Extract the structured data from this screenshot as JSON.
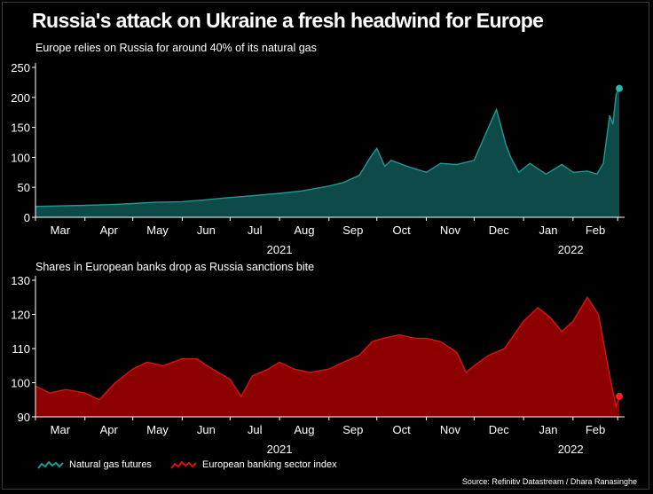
{
  "title": "Russia's attack on Ukraine a fresh headwind for Europe",
  "source": "Source: Refinitiv Datastream / Dhara Ranasinghe",
  "legend": {
    "gas": "Natural gas futures",
    "banks": "European banking sector index"
  },
  "colors": {
    "background": "#000000",
    "gas_fill": "#0e4a48",
    "gas_line": "#1a9b95",
    "bank_fill": "#8c0000",
    "bank_line": "#e0100f",
    "gas_dot": "#2bb5ae",
    "bank_dot": "#ff2020"
  },
  "chart_data": [
    {
      "type": "area",
      "subtitle": "Europe relies on Russia for around 40% of its natural gas",
      "series": [
        {
          "name": "Natural gas futures",
          "x": [
            "2021-03-01",
            "2021-03-15",
            "2021-04-01",
            "2021-04-15",
            "2021-05-01",
            "2021-05-15",
            "2021-06-01",
            "2021-06-15",
            "2021-07-01",
            "2021-07-15",
            "2021-08-01",
            "2021-08-15",
            "2021-09-01",
            "2021-09-10",
            "2021-09-20",
            "2021-09-27",
            "2021-10-01",
            "2021-10-06",
            "2021-10-10",
            "2021-10-20",
            "2021-11-01",
            "2021-11-10",
            "2021-11-20",
            "2021-12-01",
            "2021-12-10",
            "2021-12-15",
            "2021-12-21",
            "2021-12-24",
            "2021-12-29",
            "2022-01-05",
            "2022-01-15",
            "2022-01-25",
            "2022-02-01",
            "2022-02-10",
            "2022-02-16",
            "2022-02-20",
            "2022-02-24",
            "2022-02-26",
            "2022-02-28",
            "2022-03-02"
          ],
          "values": [
            18,
            19,
            20,
            21,
            23,
            25,
            26,
            29,
            33,
            36,
            40,
            44,
            52,
            58,
            70,
            100,
            115,
            85,
            95,
            85,
            75,
            90,
            88,
            95,
            150,
            180,
            120,
            100,
            75,
            90,
            72,
            88,
            75,
            77,
            72,
            90,
            170,
            155,
            205,
            215
          ]
        }
      ],
      "ylim": [
        0,
        250
      ],
      "yticks": [
        "0",
        "50",
        "100",
        "150",
        "200",
        "250"
      ],
      "xticks": [
        "Mar",
        "Apr",
        "May",
        "Jun",
        "Jul",
        "Aug",
        "Sep",
        "Oct",
        "Nov",
        "Dec",
        "Jan",
        "Feb"
      ],
      "year_labels": [
        "2021",
        "2022"
      ]
    },
    {
      "type": "area",
      "subtitle": "Shares in European banks drop as Russia sanctions bite",
      "series": [
        {
          "name": "European banking sector index",
          "x": [
            "2021-03-01",
            "2021-03-10",
            "2021-03-20",
            "2021-04-01",
            "2021-04-10",
            "2021-04-20",
            "2021-05-01",
            "2021-05-10",
            "2021-05-20",
            "2021-06-01",
            "2021-06-10",
            "2021-06-20",
            "2021-07-01",
            "2021-07-08",
            "2021-07-15",
            "2021-07-25",
            "2021-08-01",
            "2021-08-10",
            "2021-08-20",
            "2021-09-01",
            "2021-09-10",
            "2021-09-20",
            "2021-09-28",
            "2021-10-05",
            "2021-10-15",
            "2021-10-25",
            "2021-11-01",
            "2021-11-10",
            "2021-11-20",
            "2021-11-26",
            "2021-12-01",
            "2021-12-10",
            "2021-12-20",
            "2022-01-01",
            "2022-01-10",
            "2022-01-18",
            "2022-01-25",
            "2022-02-01",
            "2022-02-10",
            "2022-02-17",
            "2022-02-24",
            "2022-02-28",
            "2022-03-02"
          ],
          "values": [
            99,
            97,
            98,
            97,
            95,
            100,
            104,
            106,
            105,
            107,
            107,
            104,
            101,
            96,
            102,
            104,
            106,
            104,
            103,
            104,
            106,
            108,
            112,
            113,
            114,
            113,
            113,
            112,
            109,
            103,
            105,
            108,
            110,
            118,
            122,
            119,
            115,
            118,
            125,
            120,
            102,
            93,
            96
          ]
        }
      ],
      "ylim": [
        90,
        130
      ],
      "yticks": [
        "90",
        "100",
        "110",
        "120",
        "130"
      ],
      "xticks": [
        "Mar",
        "Apr",
        "May",
        "Jun",
        "Jul",
        "Aug",
        "Sep",
        "Oct",
        "Nov",
        "Dec",
        "Jan",
        "Feb"
      ],
      "year_labels": [
        "2021",
        "2022"
      ]
    }
  ]
}
